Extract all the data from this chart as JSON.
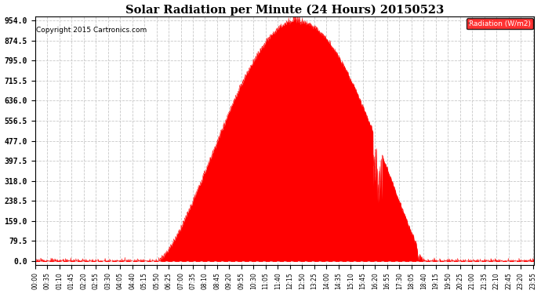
{
  "title": "Solar Radiation per Minute (24 Hours) 20150523",
  "copyright": "Copyright 2015 Cartronics.com",
  "legend_label": "Radiation (W/m2)",
  "background_color": "#ffffff",
  "plot_bg_color": "#ffffff",
  "area_color": "#ff0000",
  "line_color": "#ff0000",
  "grid_color": "#c8c8c8",
  "yticks": [
    0.0,
    79.5,
    159.0,
    238.5,
    318.0,
    397.5,
    477.0,
    556.5,
    636.0,
    715.5,
    795.0,
    874.5,
    954.0
  ],
  "ymax": 954.0,
  "ymin": 0.0,
  "total_minutes": 1440,
  "sunrise_minute": 350,
  "sunset_minute": 1125,
  "peak_minute": 755,
  "peak_value": 954.0
}
